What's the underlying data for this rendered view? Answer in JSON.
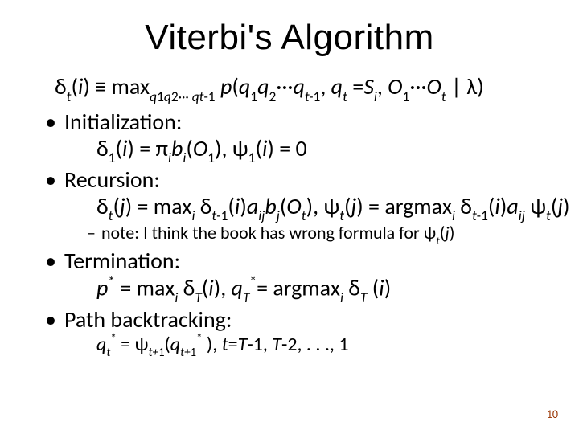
{
  "title": "Viterbi's Algorithm",
  "definition_html": "δ<span class='subsc ital'>t</span>(<span class='ital'>i</span>) ≡ max<span class='subsc'><span class='ital'>q</span>1<span class='ital'>q</span>2··· <span class='ital'>qt</span>-1</span> <span class='ital'>p</span>(<span class='ital'>q</span><span class='subsc'>1</span><span class='ital'>q</span><span class='subsc'>2</span>···<span class='ital'>q</span><span class='subsc ital'>t-</span><span class='subsc'>1</span>, <span class='ital'>q</span><span class='subsc ital'>t</span> =<span class='ital'>S</span><span class='subsc ital'>i</span>, <span class='ital'>O</span><span class='subsc'>1</span>···<span class='ital'>O</span><span class='subsc ital'>t</span> | λ)",
  "items": {
    "init": {
      "label": "Initialization:",
      "formula_html": "δ<span class='subsc'>1</span>(<span class='ital'>i</span>) = π<span class='subsc ital'>i</span><span class='ital'>b</span><span class='subsc ital'>i</span>(<span class='ital'>O</span><span class='subsc'>1</span>), ψ<span class='subsc'>1</span>(<span class='ital'>i</span>) = 0"
    },
    "recur": {
      "label": "Recursion:",
      "formula_html": "δ<span class='subsc ital'>t</span>(<span class='ital'>j</span>) = max<span class='subsc ital'>i</span> δ<span class='subsc ital'>t</span><span class='subsc'>-1</span>(<span class='ital'>i</span>)<span class='ital'>a</span><span class='subsc ital'>ij</span><span class='ital'>b</span><span class='subsc ital'>j</span>(<span class='ital'>O</span><span class='subsc ital'>t</span>), ψ<span class='subsc ital'>t</span>(<span class='ital'>j</span>) = argmax<span class='subsc ital'>i</span> δ<span class='subsc ital'>t</span><span class='subsc'>-1</span>(<span class='ital'>i</span>)<span class='ital'>a</span><span class='subsc ital'>ij</span> ψ<span class='subsc ital'>t</span>(<span class='ital'>j</span>)",
      "note_html": "note: I think the book has wrong formula for ψ<span class='subsc ital'>t</span>(<span class='ital'>j</span>)"
    },
    "term": {
      "label": "Termination:",
      "formula_html": "<span class='ital'>p</span><span class='supsc'>*</span> = max<span class='subsc ital'>i</span> δ<span class='subsc ital'>T</span>(<span class='ital'>i</span>), <span class='ital'>q</span><span class='subsc ital'>T</span><span class='supsc'>*</span>= argmax<span class='subsc ital'>i</span> δ<span class='subsc ital'>T</span> (<span class='ital'>i</span>)"
    },
    "path": {
      "label": "Path backtracking:",
      "formula_html": "<span class='ital'>q</span><span class='subsc ital'>t</span><span class='supsc'>*</span> = ψ<span class='subsc ital'>t+</span><span class='subsc'>1</span>(<span class='ital'>q</span><span class='subsc ital'>t+</span><span class='subsc'>1</span><span class='supsc'>*</span> ), <span class='ital'>t</span>=<span class='ital'>T</span>-1, <span class='ital'>T</span>-2, . . ., 1"
    }
  },
  "page_number": "10",
  "colors": {
    "bg": "#ffffff",
    "text": "#000000",
    "pagenum": "#993300"
  }
}
